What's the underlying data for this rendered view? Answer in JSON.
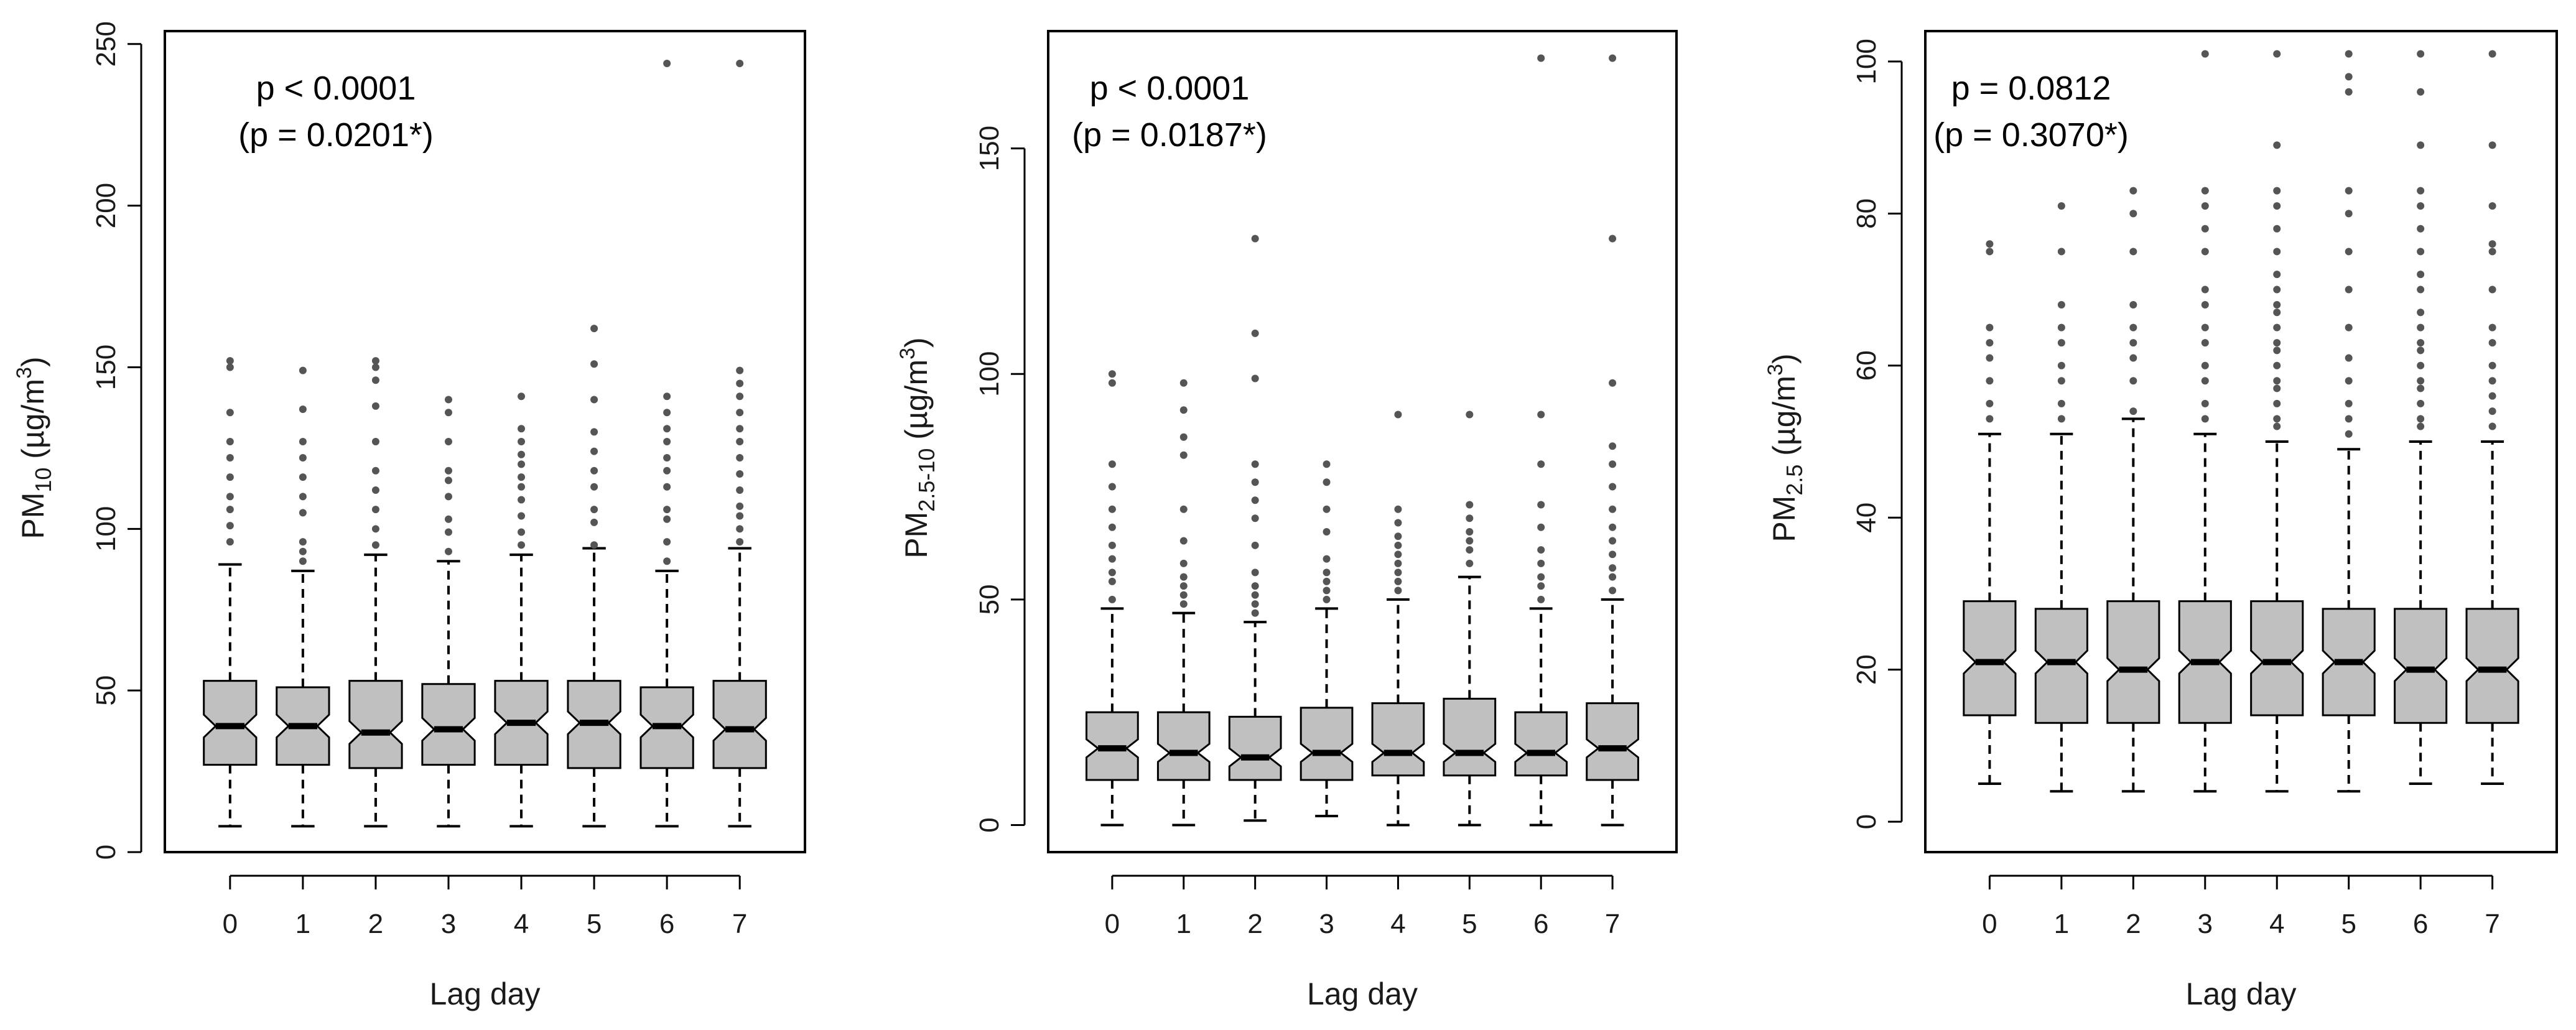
{
  "chart_data": [
    {
      "type": "boxplot",
      "ylabel_base": "PM",
      "ylabel_sub": "10",
      "ylabel_unit_pre": " (µg/m",
      "ylabel_unit_sup": "3",
      "ylabel_unit_post": ")",
      "xlabel": "Lag day",
      "categories": [
        "0",
        "1",
        "2",
        "3",
        "4",
        "5",
        "6",
        "7"
      ],
      "ylim": [
        0,
        250
      ],
      "yticks": [
        0,
        50,
        100,
        150,
        200,
        250
      ],
      "annotation_line1": "p < 0.0001",
      "annotation_line2": "(p = 0.0201*)",
      "boxes": [
        {
          "low": 8,
          "q1": 27,
          "median": 39,
          "q3": 53,
          "high": 89,
          "notch": 3.5,
          "outliers": [
            96,
            101,
            106,
            110,
            116,
            122,
            127,
            136,
            150,
            152
          ]
        },
        {
          "low": 8,
          "q1": 27,
          "median": 39,
          "q3": 51,
          "high": 87,
          "notch": 3.5,
          "outliers": [
            90,
            93,
            96,
            105,
            110,
            116,
            122,
            127,
            137,
            149
          ]
        },
        {
          "low": 8,
          "q1": 26,
          "median": 37,
          "q3": 53,
          "high": 92,
          "notch": 3.5,
          "outliers": [
            95,
            100,
            106,
            112,
            118,
            127,
            138,
            146,
            150,
            152
          ]
        },
        {
          "low": 8,
          "q1": 27,
          "median": 38,
          "q3": 52,
          "high": 90,
          "notch": 3.5,
          "outliers": [
            93,
            99,
            103,
            110,
            115,
            118,
            127,
            136,
            140
          ]
        },
        {
          "low": 8,
          "q1": 27,
          "median": 40,
          "q3": 53,
          "high": 92,
          "notch": 3.5,
          "outliers": [
            95,
            99,
            104,
            109,
            113,
            116,
            120,
            123,
            127,
            131,
            141
          ]
        },
        {
          "low": 8,
          "q1": 26,
          "median": 40,
          "q3": 53,
          "high": 94,
          "notch": 3.5,
          "outliers": [
            95,
            102,
            106,
            113,
            118,
            124,
            130,
            140,
            151,
            162
          ]
        },
        {
          "low": 8,
          "q1": 26,
          "median": 39,
          "q3": 51,
          "high": 87,
          "notch": 3.5,
          "outliers": [
            90,
            96,
            103,
            106,
            113,
            118,
            122,
            127,
            131,
            136,
            141,
            244
          ]
        },
        {
          "low": 8,
          "q1": 26,
          "median": 38,
          "q3": 53,
          "high": 94,
          "notch": 3.5,
          "outliers": [
            96,
            100,
            104,
            107,
            112,
            117,
            122,
            127,
            131,
            136,
            141,
            145,
            149,
            244
          ]
        }
      ]
    },
    {
      "type": "boxplot",
      "ylabel_base": "PM",
      "ylabel_sub": "2.5-10",
      "ylabel_unit_pre": " (µg/m",
      "ylabel_unit_sup": "3",
      "ylabel_unit_post": ")",
      "xlabel": "Lag day",
      "categories": [
        "0",
        "1",
        "2",
        "3",
        "4",
        "5",
        "6",
        "7"
      ],
      "ylim": [
        0,
        170
      ],
      "yticks": [
        0,
        50,
        100,
        150
      ],
      "annotation_line1": "p < 0.0001",
      "annotation_line2": "(p = 0.0187*)",
      "boxes": [
        {
          "low": 0,
          "q1": 10,
          "median": 17,
          "q3": 25,
          "high": 48,
          "notch": 2,
          "outliers": [
            50,
            54,
            56,
            59,
            62,
            66,
            70,
            75,
            80,
            98,
            100
          ]
        },
        {
          "low": 0,
          "q1": 10,
          "median": 16,
          "q3": 25,
          "high": 47,
          "notch": 2,
          "outliers": [
            49,
            51,
            53,
            55,
            58,
            63,
            70,
            82,
            86,
            92,
            98
          ]
        },
        {
          "low": 1,
          "q1": 10,
          "median": 15,
          "q3": 24,
          "high": 45,
          "notch": 2,
          "outliers": [
            47,
            49,
            51,
            53,
            56,
            62,
            68,
            72,
            76,
            80,
            99,
            109,
            130
          ]
        },
        {
          "low": 2,
          "q1": 10,
          "median": 16,
          "q3": 26,
          "high": 48,
          "notch": 2,
          "outliers": [
            50,
            52,
            54,
            56,
            59,
            65,
            70,
            76,
            80
          ]
        },
        {
          "low": 0,
          "q1": 11,
          "median": 16,
          "q3": 27,
          "high": 50,
          "notch": 2,
          "outliers": [
            52,
            54,
            56,
            58,
            60,
            62,
            64,
            67,
            70,
            91
          ]
        },
        {
          "low": 0,
          "q1": 11,
          "median": 16,
          "q3": 28,
          "high": 55,
          "notch": 2,
          "outliers": [
            58,
            61,
            63,
            65,
            68,
            71,
            91
          ]
        },
        {
          "low": 0,
          "q1": 11,
          "median": 16,
          "q3": 25,
          "high": 48,
          "notch": 2,
          "outliers": [
            50,
            53,
            55,
            58,
            61,
            66,
            71,
            80,
            91,
            170
          ]
        },
        {
          "low": 0,
          "q1": 10,
          "median": 17,
          "q3": 27,
          "high": 50,
          "notch": 2,
          "outliers": [
            52,
            55,
            57,
            60,
            63,
            66,
            70,
            75,
            80,
            84,
            98,
            130,
            170
          ]
        }
      ]
    },
    {
      "type": "boxplot",
      "ylabel_base": "PM",
      "ylabel_sub": "2.5",
      "ylabel_unit_pre": " (µg/m",
      "ylabel_unit_sup": "3",
      "ylabel_unit_post": ")",
      "xlabel": "Lag day",
      "categories": [
        "0",
        "1",
        "2",
        "3",
        "4",
        "5",
        "6",
        "7"
      ],
      "ylim": [
        0,
        103
      ],
      "yticks": [
        0,
        20,
        40,
        60,
        80,
        100
      ],
      "annotation_line1": "p = 0.0812",
      "annotation_line2": "(p = 0.3070*)",
      "boxes": [
        {
          "low": 5,
          "q1": 14,
          "median": 21,
          "q3": 29,
          "high": 51,
          "notch": 1.5,
          "outliers": [
            53,
            55,
            58,
            61,
            63,
            65,
            75,
            76
          ]
        },
        {
          "low": 4,
          "q1": 13,
          "median": 21,
          "q3": 28,
          "high": 51,
          "notch": 1.5,
          "outliers": [
            53,
            55,
            58,
            60,
            63,
            65,
            68,
            75,
            81
          ]
        },
        {
          "low": 4,
          "q1": 13,
          "median": 20,
          "q3": 29,
          "high": 53,
          "notch": 1.5,
          "outliers": [
            54,
            58,
            61,
            63,
            65,
            68,
            75,
            80,
            83
          ]
        },
        {
          "low": 4,
          "q1": 13,
          "median": 21,
          "q3": 29,
          "high": 51,
          "notch": 1.5,
          "outliers": [
            53,
            55,
            58,
            60,
            63,
            65,
            68,
            70,
            75,
            78,
            81,
            83,
            101
          ]
        },
        {
          "low": 4,
          "q1": 14,
          "median": 21,
          "q3": 29,
          "high": 50,
          "notch": 1.5,
          "outliers": [
            52,
            53,
            55,
            57,
            58,
            60,
            62,
            63,
            65,
            67,
            68,
            70,
            72,
            75,
            78,
            81,
            83,
            89,
            101
          ]
        },
        {
          "low": 4,
          "q1": 14,
          "median": 21,
          "q3": 28,
          "high": 49,
          "notch": 1.5,
          "outliers": [
            51,
            53,
            55,
            58,
            61,
            65,
            70,
            75,
            80,
            83,
            96,
            98,
            101
          ]
        },
        {
          "low": 5,
          "q1": 13,
          "median": 20,
          "q3": 28,
          "high": 50,
          "notch": 1.5,
          "outliers": [
            52,
            53,
            55,
            57,
            58,
            60,
            62,
            63,
            65,
            67,
            70,
            72,
            75,
            78,
            81,
            83,
            89,
            96,
            101
          ]
        },
        {
          "low": 5,
          "q1": 13,
          "median": 20,
          "q3": 28,
          "high": 50,
          "notch": 1.5,
          "outliers": [
            52,
            54,
            56,
            58,
            60,
            63,
            65,
            70,
            75,
            76,
            81,
            89,
            101
          ]
        }
      ]
    }
  ],
  "style": {
    "box_fill": "#c0c0c0",
    "stroke": "#000000",
    "outlier_color": "#555555",
    "background": "#ffffff"
  }
}
